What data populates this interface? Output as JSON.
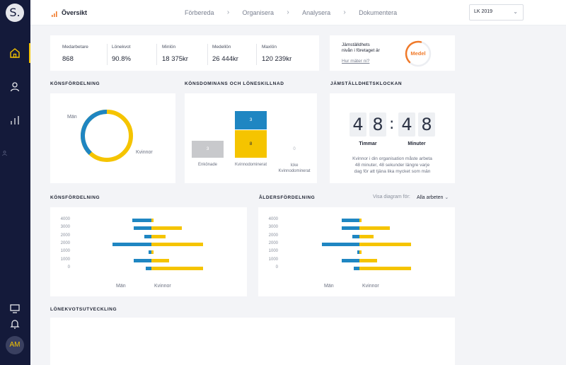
{
  "sidebar": {
    "logo_text": "S.",
    "avatar_initials": "AM",
    "accent": "#f5c400"
  },
  "header": {
    "title": "Översikt",
    "steps": [
      "Förbereda",
      "Organisera",
      "Analysera",
      "Dokumentera"
    ],
    "select_value": "LK 2019"
  },
  "kpis": [
    {
      "label": "Medarbetare",
      "value": "868"
    },
    {
      "label": "Lönekvot",
      "value": "90.8%"
    },
    {
      "label": "Minlön",
      "value": "18 375kr"
    },
    {
      "label": "Medellön",
      "value": "26 444kr"
    },
    {
      "label": "Maxlön",
      "value": "120 239kr"
    }
  ],
  "equality": {
    "title_line1": "Jämställdhets",
    "title_line2": "nivån i företaget är",
    "link": "Hur mäter ni?",
    "badge": "Medel",
    "badge_color": "#f07a2a",
    "level": 0.5
  },
  "gender_donut": {
    "title": "KÖNSFÖRDELNING",
    "label_men": "Män",
    "label_women": "Kvinnor",
    "men_fraction": 0.38,
    "men_color": "#1f86c2",
    "women_color": "#f5c400"
  },
  "dominance": {
    "title": "KÖNSDOMINANS OCH LÖNESKILLNAD",
    "bars": [
      {
        "label": "Enkönade",
        "value": "3",
        "color": "#c8c9cc"
      },
      {
        "label": "Kvinnodominerat",
        "top_value": "3",
        "bottom_value": "8"
      },
      {
        "label_line1": "Icke",
        "label_line2": "Kvinnodominerat",
        "value": "0"
      }
    ]
  },
  "clock": {
    "title": "JÄMSTÄLLDHETSKLOCKAN",
    "hours": [
      "4",
      "8"
    ],
    "minutes": [
      "4",
      "8"
    ],
    "colon": ":",
    "hours_label": "Timmar",
    "minutes_label": "Minuter",
    "desc_line1": "Kvinnor i din organisation måste arbeta",
    "desc_line2": "48 minuter, 48 sekunder längre varje",
    "desc_line3": "dag för att tjäna lika mycket som män"
  },
  "gender_chart": {
    "title": "KÖNSFÖRDELNING",
    "legend_men": "Män",
    "legend_women": "Kvinnor"
  },
  "age_chart": {
    "title": "ÅLDERSFÖRDELNING",
    "legend_men": "Män",
    "legend_women": "Kvinnor",
    "filter_label": "Visa diagram för:",
    "filter_value": "Alla arbeten"
  },
  "salary_trend": {
    "title": "LÖNEKVOTSUTVECKLING"
  },
  "chart_data": [
    {
      "type": "bar",
      "orientation": "horizontal-diverging",
      "title": "KÖNSFÖRDELNING",
      "y_ticks": [
        "4000",
        "3000",
        "2000",
        "2000",
        "1000",
        "1000",
        "0"
      ],
      "series": [
        {
          "name": "Män",
          "color": "#1f86c2",
          "values": [
            27,
            25,
            10,
            55,
            4,
            25,
            8
          ]
        },
        {
          "name": "Kvinnor",
          "color": "#f5c400",
          "values": [
            3,
            43,
            20,
            73,
            3,
            25,
            73
          ]
        }
      ]
    },
    {
      "type": "bar",
      "orientation": "horizontal-diverging",
      "title": "ÅLDERSFÖRDELNING",
      "y_ticks": [
        "4000",
        "3000",
        "2000",
        "2000",
        "1000",
        "1000",
        "0"
      ],
      "series": [
        {
          "name": "Män",
          "color": "#1f86c2",
          "values": [
            25,
            25,
            10,
            53,
            3,
            25,
            8
          ]
        },
        {
          "name": "Kvinnor",
          "color": "#f5c400",
          "values": [
            3,
            43,
            20,
            73,
            3,
            25,
            73
          ]
        }
      ]
    }
  ]
}
